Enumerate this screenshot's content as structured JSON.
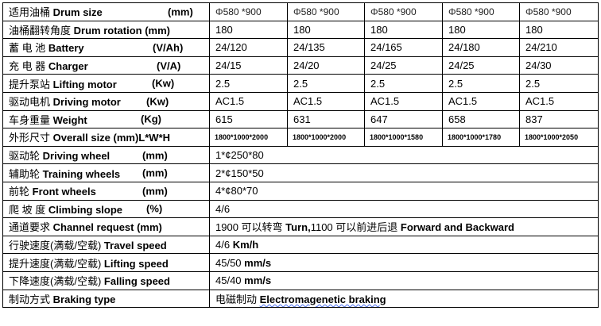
{
  "rows": [
    {
      "cn": "适用油桶",
      "en": "Drum size",
      "unit": "(mm)",
      "unit_x": 207,
      "values": [
        "Φ580 *900",
        "Φ580 *900",
        "Φ580 *900",
        "Φ580 *900",
        "Φ580 *900"
      ]
    },
    {
      "cn": "油桶翻转角度",
      "en": "Drum rotation (mm)",
      "unit": "",
      "values": [
        "180",
        "180",
        "180",
        "180",
        "180"
      ]
    },
    {
      "cn": "蓄 电 池",
      "en": "Battery",
      "unit": "(V/Ah)",
      "unit_x": 188,
      "values": [
        "24/120",
        "24/135",
        "24/165",
        "24/180",
        "24/210"
      ]
    },
    {
      "cn": "充 电 器",
      "en": "Charger",
      "unit": "(V/A)",
      "unit_x": 193,
      "values": [
        "24/15",
        "24/20",
        "24/25",
        "24/25",
        "24/30"
      ]
    },
    {
      "cn": "提升泵站",
      "en": "Lifting motor",
      "unit": "(Kw)",
      "unit_x": 187,
      "values": [
        "2.5",
        "2.5",
        "2.5",
        "2.5",
        "2.5"
      ]
    },
    {
      "cn": "驱动电机",
      "en": "Driving motor",
      "unit": "(Kw)",
      "unit_x": 180,
      "values": [
        "AC1.5",
        "AC1.5",
        "AC1.5",
        "AC1.5",
        "AC1.5"
      ]
    },
    {
      "cn": "车身重量",
      "en": "Weight",
      "unit": "(Kg)",
      "unit_x": 173,
      "values": [
        "615",
        "631",
        "647",
        "658",
        "837"
      ]
    },
    {
      "cn": "外形尺寸",
      "en": "Overall size (mm)L*W*H",
      "unit": "",
      "values": [
        "1800*1000*2000",
        "1800*1000*2000",
        "1800*1000*1580",
        "1800*1000*1780",
        "1800*1000*2050"
      ]
    },
    {
      "cn": "驱动轮",
      "en": "Driving wheel",
      "unit": "(mm)",
      "unit_x": 175,
      "span": "1*¢250*80"
    },
    {
      "cn": "辅助轮",
      "en": "Training wheels",
      "unit": "(mm)",
      "unit_x": 175,
      "span": "2*¢150*50"
    },
    {
      "cn": "前轮",
      "en": "Front wheels",
      "unit": "(mm)",
      "unit_x": 175,
      "span": "4*¢80*70"
    },
    {
      "cn": "爬 坡 度",
      "en": "Climbing slope",
      "unit": "(%)",
      "unit_x": 180,
      "span": "4/6"
    },
    {
      "cn": "通道要求",
      "en": "Channel request (mm)",
      "unit": "",
      "span_cn": "1900 可以转弯",
      "span_en": "Turn,",
      "span_cn2": "1100 可以前进后退",
      "span_en2": "Forward and Backward"
    },
    {
      "cn": "行驶速度(满载/空载)",
      "en": "Travel speed",
      "unit": "",
      "span_cn": "4/6",
      "span_en": "Km/h"
    },
    {
      "cn": "提升速度(满载/空载)",
      "en": "Lifting speed",
      "unit": "",
      "span_cn": "45/50",
      "span_en": "mm/s"
    },
    {
      "cn": "下降速度(满载/空载)",
      "en": "Falling speed",
      "unit": "",
      "span_cn": "45/40",
      "span_en": "mm/s"
    },
    {
      "cn": "制动方式",
      "en": "Braking type",
      "unit": "",
      "span_cn": "电磁制动",
      "span_en": "Electromagenetic braking"
    }
  ]
}
